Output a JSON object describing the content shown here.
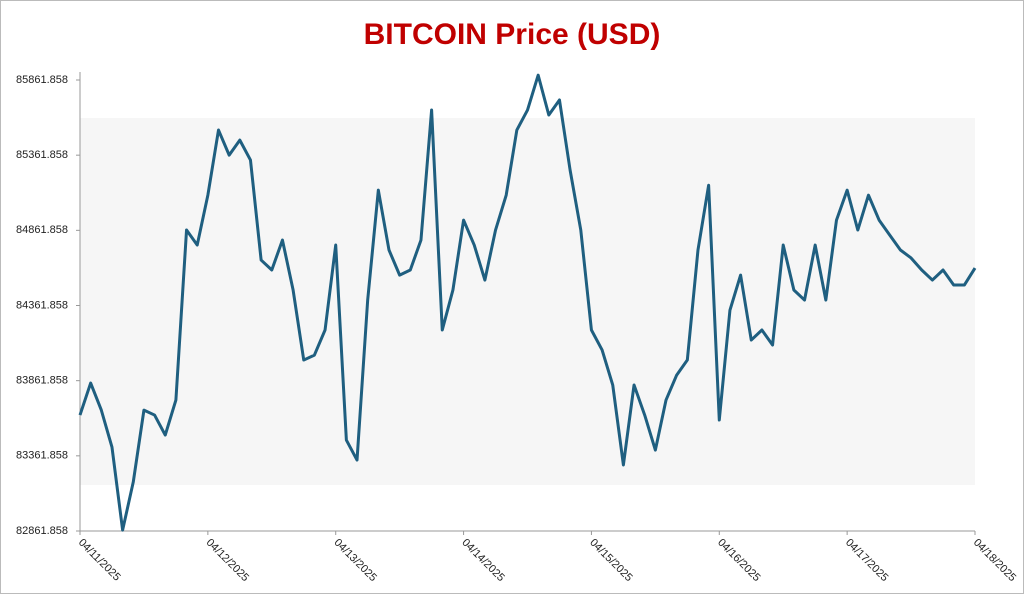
{
  "chart_data": {
    "type": "line",
    "title": "BITCOIN Price (USD)",
    "categories": [
      "04/11/2025",
      null,
      null,
      null,
      null,
      null,
      null,
      null,
      null,
      null,
      null,
      null,
      "04/12/2025",
      null,
      null,
      null,
      null,
      null,
      null,
      null,
      null,
      null,
      null,
      null,
      "04/13/2025",
      null,
      null,
      null,
      null,
      null,
      null,
      null,
      null,
      null,
      null,
      null,
      "04/14/2025",
      null,
      null,
      null,
      null,
      null,
      null,
      null,
      null,
      null,
      null,
      null,
      "04/15/2025",
      null,
      null,
      null,
      null,
      null,
      null,
      null,
      null,
      null,
      null,
      null,
      "04/16/2025",
      null,
      null,
      null,
      null,
      null,
      null,
      null,
      null,
      null,
      null,
      null,
      "04/17/2025",
      null,
      null,
      null,
      null,
      null,
      null,
      null,
      null,
      null,
      null,
      null,
      "04/18/2025"
    ],
    "series": [
      {
        "name": "BITCOIN",
        "color": "#1f5f80",
        "values": [
          83633,
          83846,
          83666,
          83420,
          82868,
          83188,
          83666,
          83633,
          83500,
          83733,
          84864,
          84764,
          85096,
          85529,
          85362,
          85462,
          85329,
          84664,
          84598,
          84797,
          84465,
          83999,
          84032,
          84199,
          84764,
          83467,
          83334,
          84398,
          85129,
          84731,
          84564,
          84598,
          84797,
          85662,
          84199,
          84465,
          84930,
          84764,
          84531,
          84864,
          85096,
          85529,
          85662,
          85894,
          85629,
          85729,
          85262,
          84864,
          84199,
          84066,
          83833,
          83301,
          83833,
          83633,
          83400,
          83733,
          83899,
          83999,
          84731,
          85162,
          83600,
          84331,
          84564,
          84132,
          84199,
          84099,
          84764,
          84465,
          84398,
          84764,
          84398,
          84930,
          85129,
          84864,
          85096,
          84930,
          84830,
          84731,
          84678,
          84598,
          84531,
          84598,
          84498,
          84498,
          84611
        ]
      }
    ],
    "ylim": [
      82861.858,
      85861.858
    ],
    "yticks": [
      82861.858,
      83361.858,
      83861.858,
      84361.858,
      84861.858,
      85361.858,
      85861.858
    ]
  }
}
